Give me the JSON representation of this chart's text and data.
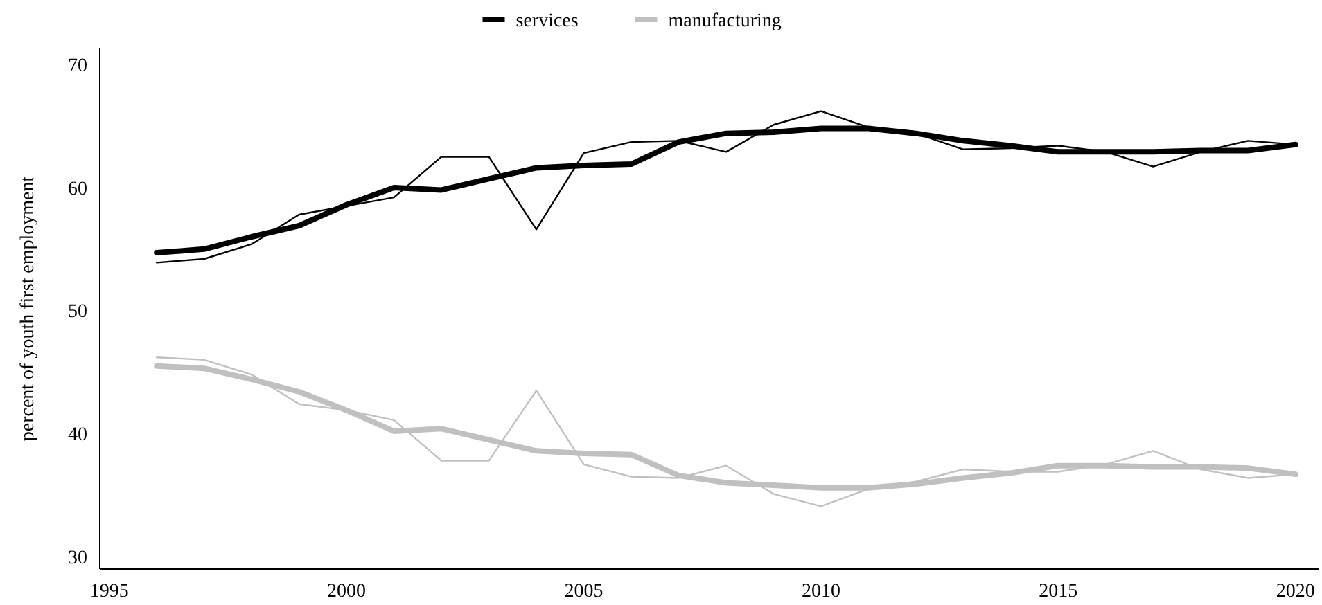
{
  "chart_data": {
    "type": "line",
    "ylabel": "percent of youth first employment",
    "x": [
      1996,
      1997,
      1998,
      1999,
      2000,
      2001,
      2002,
      2003,
      2004,
      2005,
      2006,
      2007,
      2008,
      2009,
      2010,
      2011,
      2012,
      2013,
      2014,
      2015,
      2016,
      2017,
      2018,
      2019,
      2020
    ],
    "series": [
      {
        "color": "#000000",
        "values": [
          53.9,
          54.2,
          55.4,
          57.8,
          58.5,
          59.2,
          62.5,
          62.5,
          56.6,
          62.8,
          63.7,
          63.8,
          62.9,
          65.1,
          66.2,
          64.9,
          64.4,
          63.1,
          63.2,
          63.4,
          62.9,
          61.7,
          62.9,
          63.8,
          63.5
        ]
      },
      {
        "color": "#c0c0c0",
        "values": [
          46.2,
          46.0,
          44.8,
          42.4,
          41.9,
          41.1,
          37.8,
          37.8,
          43.5,
          37.5,
          36.5,
          36.4,
          37.4,
          35.1,
          34.1,
          35.5,
          36.1,
          37.1,
          36.9,
          36.9,
          37.5,
          38.6,
          37.1,
          36.4,
          36.7
        ]
      },
      {
        "name": "services",
        "color": "#000000",
        "values": [
          54.7,
          55.0,
          56.0,
          56.9,
          58.6,
          60.0,
          59.8,
          60.7,
          61.6,
          61.8,
          61.9,
          63.7,
          64.4,
          64.5,
          64.8,
          64.8,
          64.4,
          63.8,
          63.4,
          62.9,
          62.9,
          62.9,
          63.0,
          63.0,
          63.5
        ]
      },
      {
        "name": "manufacturing",
        "color": "#c0c0c0",
        "values": [
          45.5,
          45.3,
          44.4,
          43.4,
          41.9,
          40.2,
          40.4,
          39.5,
          38.6,
          38.4,
          38.3,
          36.6,
          36.0,
          35.8,
          35.6,
          35.6,
          35.9,
          36.4,
          36.8,
          37.4,
          37.4,
          37.3,
          37.3,
          37.2,
          36.7
        ]
      }
    ],
    "xlim": [
      1994.8,
      2020.5
    ],
    "xticks": [
      1995,
      2000,
      2005,
      2010,
      2015,
      2020
    ],
    "ylim": [
      29,
      71.3
    ],
    "yticks": [
      30,
      40,
      50,
      60,
      70
    ],
    "grid": false,
    "legend": "top",
    "line_style": "solid",
    "marker": "none"
  }
}
